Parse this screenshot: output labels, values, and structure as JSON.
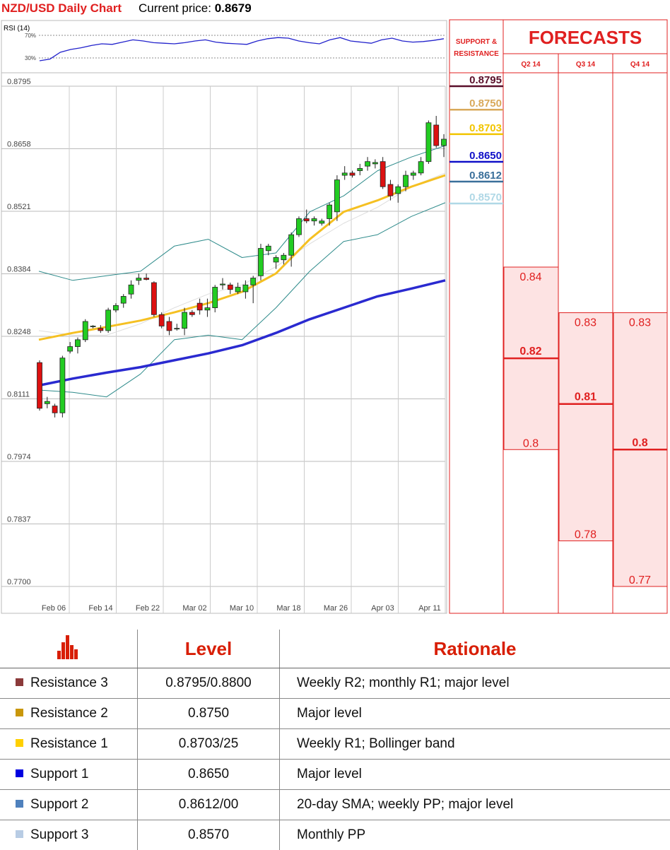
{
  "header": {
    "chart_title": "NZD/USD Daily Chart",
    "current_price_label": "Current price:",
    "current_price_value": "0.8679"
  },
  "chart_data": [
    {
      "type": "candlestick",
      "title": "NZD/USD Daily Chart",
      "ylim": [
        0.77,
        0.8795
      ],
      "y_ticks": [
        "0.8795",
        "0.8658",
        "0.8521",
        "0.8384",
        "0.8248",
        "0.8111",
        "0.7974",
        "0.7837",
        "0.7700"
      ],
      "x_ticks": [
        "Feb 06",
        "Feb 14",
        "Feb 22",
        "Mar 02",
        "Mar 10",
        "Mar 18",
        "Mar 26",
        "Apr 03",
        "Apr 11"
      ],
      "candles": [
        [
          0.819,
          0.8195,
          0.8085,
          0.809
        ],
        [
          0.81,
          0.8115,
          0.809,
          0.8105
        ],
        [
          0.8095,
          0.81,
          0.807,
          0.808
        ],
        [
          0.808,
          0.8205,
          0.807,
          0.82
        ],
        [
          0.8215,
          0.8235,
          0.821,
          0.8225
        ],
        [
          0.8225,
          0.8245,
          0.821,
          0.824
        ],
        [
          0.824,
          0.8285,
          0.8235,
          0.828
        ],
        [
          0.827,
          0.8272,
          0.8265,
          0.827
        ],
        [
          0.8265,
          0.8272,
          0.8255,
          0.826
        ],
        [
          0.826,
          0.831,
          0.8255,
          0.8305
        ],
        [
          0.8305,
          0.832,
          0.83,
          0.8315
        ],
        [
          0.832,
          0.834,
          0.831,
          0.8335
        ],
        [
          0.834,
          0.837,
          0.833,
          0.836
        ],
        [
          0.837,
          0.8385,
          0.836,
          0.8375
        ],
        [
          0.8375,
          0.8385,
          0.837,
          0.8372
        ],
        [
          0.8365,
          0.8368,
          0.829,
          0.8295
        ],
        [
          0.8295,
          0.83,
          0.8265,
          0.827
        ],
        [
          0.828,
          0.829,
          0.825,
          0.826
        ],
        [
          0.8265,
          0.8275,
          0.826,
          0.8265
        ],
        [
          0.8265,
          0.831,
          0.825,
          0.83
        ],
        [
          0.83,
          0.8305,
          0.829,
          0.8295
        ],
        [
          0.832,
          0.833,
          0.8295,
          0.8305
        ],
        [
          0.8305,
          0.833,
          0.829,
          0.831
        ],
        [
          0.831,
          0.836,
          0.83,
          0.8355
        ],
        [
          0.836,
          0.8375,
          0.835,
          0.8362
        ],
        [
          0.836,
          0.8365,
          0.834,
          0.835
        ],
        [
          0.8345,
          0.8365,
          0.834,
          0.8355
        ],
        [
          0.8345,
          0.837,
          0.833,
          0.836
        ],
        [
          0.836,
          0.838,
          0.832,
          0.8375
        ],
        [
          0.838,
          0.845,
          0.837,
          0.844
        ],
        [
          0.8435,
          0.845,
          0.8425,
          0.8445
        ],
        [
          0.841,
          0.8425,
          0.8395,
          0.842
        ],
        [
          0.8415,
          0.843,
          0.8405,
          0.8425
        ],
        [
          0.8425,
          0.8475,
          0.84,
          0.847
        ],
        [
          0.847,
          0.851,
          0.8465,
          0.8505
        ],
        [
          0.8505,
          0.8525,
          0.8495,
          0.85
        ],
        [
          0.85,
          0.851,
          0.849,
          0.8505
        ],
        [
          0.8495,
          0.8505,
          0.849,
          0.85
        ],
        [
          0.8505,
          0.854,
          0.849,
          0.8535
        ],
        [
          0.852,
          0.86,
          0.85,
          0.859
        ],
        [
          0.86,
          0.862,
          0.859,
          0.8605
        ],
        [
          0.8605,
          0.861,
          0.8595,
          0.86
        ],
        [
          0.861,
          0.8625,
          0.86,
          0.8615
        ],
        [
          0.862,
          0.864,
          0.861,
          0.863
        ],
        [
          0.8625,
          0.8635,
          0.8615,
          0.8628
        ],
        [
          0.863,
          0.864,
          0.857,
          0.8575
        ],
        [
          0.858,
          0.859,
          0.8545,
          0.8555
        ],
        [
          0.856,
          0.858,
          0.854,
          0.8575
        ],
        [
          0.8575,
          0.861,
          0.8565,
          0.86
        ],
        [
          0.86,
          0.861,
          0.859,
          0.8605
        ],
        [
          0.8605,
          0.864,
          0.86,
          0.863
        ],
        [
          0.863,
          0.872,
          0.8625,
          0.8715
        ],
        [
          0.871,
          0.873,
          0.866,
          0.8665
        ],
        [
          0.8665,
          0.869,
          0.864,
          0.8679
        ]
      ],
      "sma_50": [
        0.824,
        0.8255,
        0.8268,
        0.8282,
        0.83,
        0.832,
        0.8345,
        0.8385,
        0.846,
        0.852,
        0.8545,
        0.8575,
        0.86
      ],
      "sma_200": [
        0.814,
        0.8155,
        0.8168,
        0.818,
        0.8195,
        0.821,
        0.8228,
        0.8255,
        0.8285,
        0.831,
        0.8335,
        0.8352,
        0.837
      ],
      "bb_upper": [
        0.839,
        0.837,
        0.838,
        0.839,
        0.8445,
        0.846,
        0.842,
        0.843,
        0.852,
        0.8555,
        0.861,
        0.864,
        0.8665
      ],
      "bb_lower": [
        0.813,
        0.8125,
        0.8115,
        0.8165,
        0.824,
        0.825,
        0.824,
        0.831,
        0.839,
        0.8455,
        0.847,
        0.851,
        0.854
      ],
      "bb_mid": [
        0.826,
        0.825,
        0.825,
        0.8275,
        0.831,
        0.834,
        0.836,
        0.84,
        0.845,
        0.8495,
        0.853,
        0.8575,
        0.8605
      ]
    },
    {
      "type": "line",
      "title": "RSI (14)",
      "ylabel_ticks": [
        "70%",
        "30%"
      ],
      "ylim": [
        0,
        100
      ],
      "values": [
        25,
        28,
        40,
        45,
        48,
        52,
        55,
        54,
        58,
        62,
        60,
        57,
        56,
        55,
        57,
        60,
        62,
        58,
        56,
        55,
        54,
        60,
        64,
        66,
        65,
        60,
        57,
        55,
        62,
        66,
        60,
        58,
        56,
        62,
        65,
        60,
        58,
        59,
        61,
        64
      ]
    }
  ],
  "forecasts": {
    "title": "FORECASTS",
    "sr_header": "SUPPORT & RESISTANCE",
    "columns": [
      "Q2 14",
      "Q3 14",
      "Q4 14"
    ],
    "levels": [
      {
        "value": "0.8795",
        "color": "#5a0f2a"
      },
      {
        "value": "0.8750",
        "color": "#d9a95a"
      },
      {
        "value": "0.8703",
        "color": "#f2c500"
      },
      {
        "value": "0.8650",
        "color": "#1010c8"
      },
      {
        "value": "0.8612",
        "color": "#3a6f9a"
      },
      {
        "value": "0.8570",
        "color": "#b0d8e6"
      }
    ],
    "ranges": [
      {
        "high": "0.84",
        "mid": "0.82",
        "low": "0.8"
      },
      {
        "high": "0.83",
        "mid": "0.81",
        "low": "0.78"
      },
      {
        "high": "0.83",
        "mid": "0.8",
        "low": "0.77"
      }
    ]
  },
  "table": {
    "headers": [
      "Level",
      "Rationale"
    ],
    "rows": [
      {
        "label": "Resistance 3",
        "color": "#8b3a3a",
        "level": "0.8795/0.8800",
        "rationale": "Weekly R2; monthly R1; major level"
      },
      {
        "label": "Resistance 2",
        "color": "#c9970a",
        "level": "0.8750",
        "rationale": "Major level"
      },
      {
        "label": "Resistance 1",
        "color": "#ffd000",
        "level": "0.8703/25",
        "rationale": "Weekly R1; Bollinger band"
      },
      {
        "label": "Support 1",
        "color": "#0000e0",
        "level": "0.8650",
        "rationale": "Major level"
      },
      {
        "label": "Support 2",
        "color": "#4f81bd",
        "level": "0.8612/00",
        "rationale": "20-day SMA; weekly PP; major level"
      },
      {
        "label": "Support 3",
        "color": "#b8cce4",
        "level": "0.8570",
        "rationale": "Monthly PP"
      }
    ]
  }
}
